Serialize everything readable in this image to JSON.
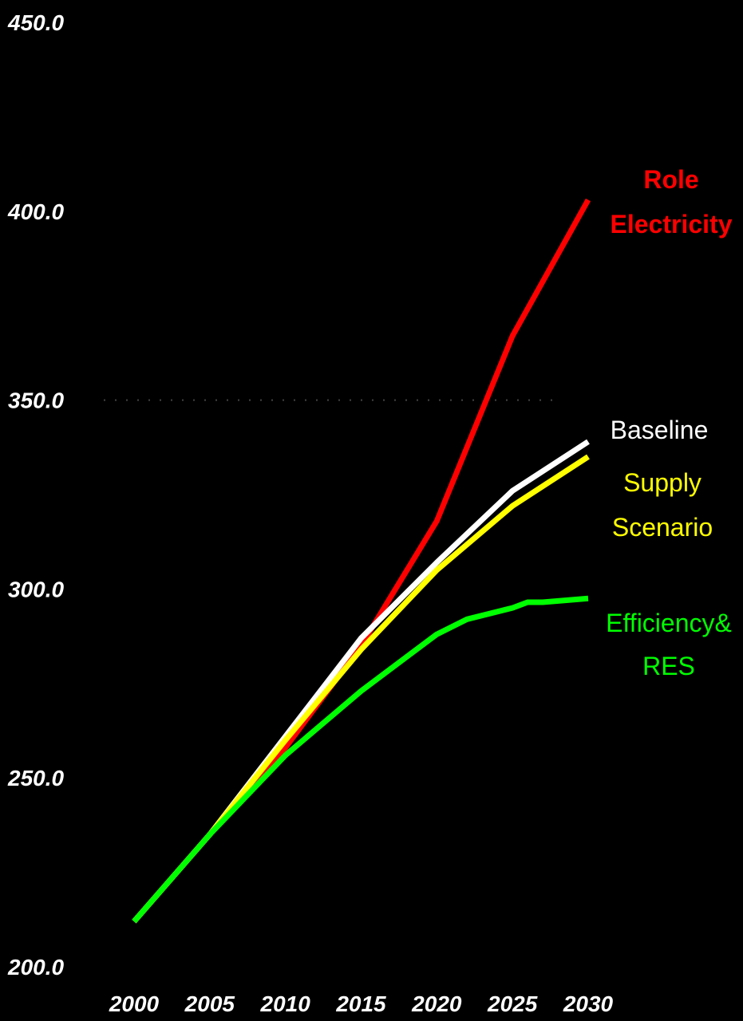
{
  "chart_data": {
    "type": "line",
    "title": "",
    "xlabel": "",
    "ylabel": "",
    "ylim": [
      200,
      450
    ],
    "xlim": [
      2000,
      2030
    ],
    "y_ticks": [
      "200.0",
      "250.0",
      "300.0",
      "350.0",
      "400.0",
      "450.0"
    ],
    "x_ticks": [
      "2000",
      "2005",
      "2010",
      "2015",
      "2020",
      "2025",
      "2030"
    ],
    "grid": "single dotted line at 350",
    "legend": "direct labels at right end of lines",
    "series": [
      {
        "name": "Role Electricity",
        "label_lines": [
          "Role",
          "Electricity"
        ],
        "color": "#ff0000",
        "bold_label": true,
        "x": [
          2000,
          2005,
          2010,
          2015,
          2020,
          2025,
          2030
        ],
        "y": [
          212,
          235,
          258,
          285,
          318,
          367,
          403
        ]
      },
      {
        "name": "Baseline",
        "label_lines": [
          "Baseline"
        ],
        "color": "#ffffff",
        "bold_label": false,
        "x": [
          2000,
          2005,
          2010,
          2015,
          2020,
          2025,
          2030
        ],
        "y": [
          212,
          235,
          261,
          287,
          307,
          326,
          339
        ]
      },
      {
        "name": "Supply Scenario",
        "label_lines": [
          "Supply",
          "Scenario"
        ],
        "color": "#ffff00",
        "bold_label": false,
        "x": [
          2000,
          2005,
          2010,
          2015,
          2020,
          2025,
          2030
        ],
        "y": [
          212,
          235,
          260,
          284,
          305,
          322,
          335
        ]
      },
      {
        "name": "Efficiency& RES",
        "label_lines": [
          "Efficiency&",
          "RES"
        ],
        "color": "#00ff00",
        "bold_label": false,
        "x": [
          2000,
          2005,
          2010,
          2015,
          2020,
          2022,
          2025,
          2026,
          2027,
          2030
        ],
        "y": [
          212,
          235,
          256,
          273,
          288,
          292,
          295,
          296.5,
          296.5,
          297.5
        ]
      }
    ]
  }
}
